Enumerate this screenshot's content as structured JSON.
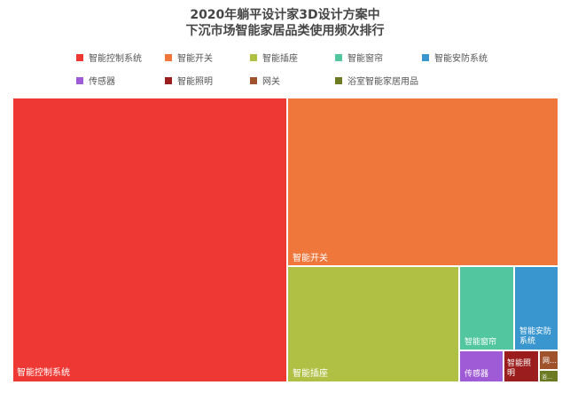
{
  "chart_data": {
    "type": "treemap",
    "title_lines": [
      "2020年躺平设计家3D设计方案中",
      "下沉市场智能家居品类使用频次排行"
    ],
    "legend_position": "top",
    "items": [
      {
        "name": "智能控制系统",
        "label": "智能控制系统",
        "color": "#ee3833",
        "value": 1000
      },
      {
        "name": "智能开关",
        "label": "智能开关",
        "color": "#f0773b",
        "value": 491
      },
      {
        "name": "智能插座",
        "label": "智能插座",
        "color": "#b0c044",
        "value": 310
      },
      {
        "name": "智能窗帘",
        "label": "智能窗帘",
        "color": "#52c79f",
        "value": 97
      },
      {
        "name": "智能安防系统",
        "label": "智能安防系统",
        "color": "#3a96cf",
        "value": 81
      },
      {
        "name": "传感器",
        "label": "传感器",
        "color": "#9f5ad6",
        "value": 30
      },
      {
        "name": "智能照明",
        "label": "智能照明",
        "color": "#9b1d1d",
        "value": 23
      },
      {
        "name": "网关",
        "label": "网…",
        "color": "#a0522d",
        "value": 11
      },
      {
        "name": "浴室智能家居用品",
        "label": "浴…",
        "color": "#6b7a23",
        "value": 6
      }
    ]
  }
}
